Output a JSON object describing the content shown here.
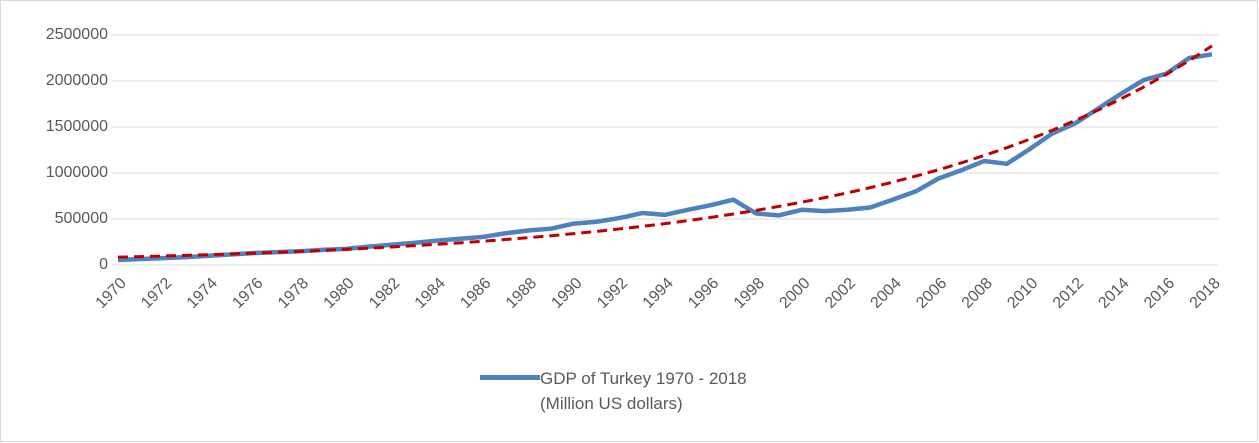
{
  "chart_data": {
    "type": "line",
    "categories": [
      "1970",
      null,
      "1972",
      null,
      "1974",
      null,
      "1976",
      null,
      "1978",
      null,
      "1980",
      null,
      "1982",
      null,
      "1984",
      null,
      "1986",
      null,
      "1988",
      null,
      "1990",
      null,
      "1992",
      null,
      "1994",
      null,
      "1996",
      null,
      "1998",
      null,
      "2000",
      null,
      "2002",
      null,
      "2004",
      null,
      "2006",
      null,
      "2008",
      null,
      "2010",
      null,
      "2012",
      null,
      "2014",
      null,
      "2016",
      null,
      "2018"
    ],
    "series": [
      {
        "name": "GDP of Turkey 1970 - 2018\n(Million US dollars)",
        "color": "#4f81bd",
        "values": [
          55000,
          65000,
          75000,
          85000,
          100000,
          115000,
          130000,
          140000,
          150000,
          165000,
          175000,
          200000,
          220000,
          240000,
          265000,
          285000,
          305000,
          345000,
          375000,
          395000,
          450000,
          470000,
          510000,
          565000,
          545000,
          600000,
          650000,
          710000,
          560000,
          540000,
          600000,
          585000,
          600000,
          625000,
          710000,
          800000,
          940000,
          1030000,
          1130000,
          1100000,
          1260000,
          1430000,
          1540000,
          1700000,
          1860000,
          2010000,
          2080000,
          2250000,
          2290000
        ]
      },
      {
        "color": "#c00000",
        "dashed": true,
        "values": [
          85000,
          91000,
          98000,
          105000,
          112000,
          120000,
          129000,
          138000,
          148000,
          159000,
          170000,
          183000,
          196000,
          210000,
          225000,
          241000,
          258000,
          277000,
          297000,
          318000,
          341000,
          365000,
          392000,
          420000,
          450000,
          482000,
          517000,
          554000,
          594000,
          637000,
          683000,
          732000,
          784000,
          841000,
          901000,
          966000,
          1035000,
          1110000,
          1190000,
          1275000,
          1367000,
          1465000,
          1571000,
          1683000,
          1805000,
          1934000,
          2073000,
          2222000,
          2382000
        ]
      }
    ],
    "ylim": [
      0,
      2500000
    ],
    "yticks": [
      0,
      500000,
      1000000,
      1500000,
      2000000,
      2500000
    ],
    "grid": true,
    "legend": "bottom"
  }
}
